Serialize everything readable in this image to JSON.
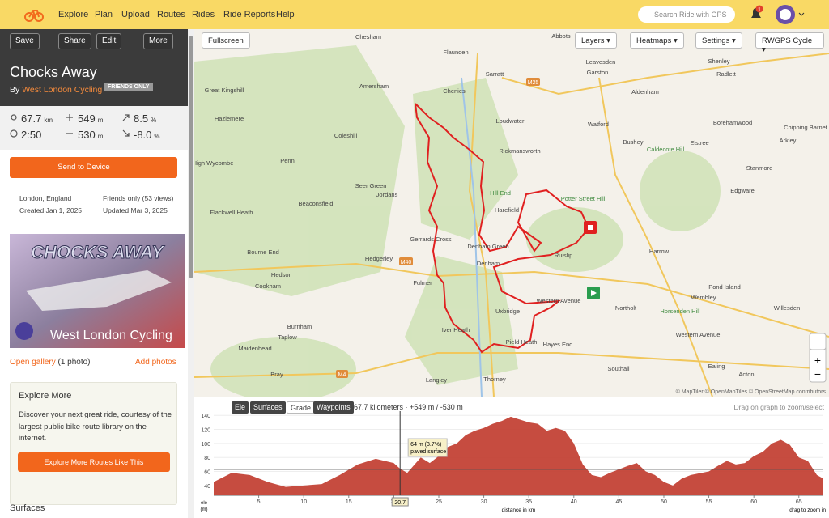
{
  "nav": {
    "items": [
      "Explore",
      "Plan",
      "Upload",
      "Routes",
      "Rides",
      "Ride Reports",
      "Help"
    ],
    "search": "Search Ride with GPS",
    "notifications": "1"
  },
  "toolbar": {
    "buttons": [
      "Save",
      "Share",
      "Edit",
      "More"
    ]
  },
  "ride": {
    "title": "Chocks Away",
    "by": "By",
    "club": "West London Cycling",
    "visibility": "FRIENDS ONLY"
  },
  "stats": [
    {
      "value": "67.7",
      "unit": "km"
    },
    {
      "value": "549",
      "unit": "m"
    },
    {
      "value": "8.5",
      "unit": "%"
    },
    {
      "value": "2:50"
    },
    {
      "value": "530",
      "unit": "m"
    },
    {
      "value": "-8.0",
      "unit": "%"
    }
  ],
  "send": "Send to Device",
  "meta": [
    "London, England",
    "Friends only (53 views)",
    "Created Jan 1, 2025",
    "Updated Mar 3, 2025"
  ],
  "photo": {
    "banner": "CHOCKS AWAY",
    "caption": "West London Cycling"
  },
  "gallery": {
    "link": "Open gallery",
    "count": "(1 photo)",
    "add": "Add photos"
  },
  "explore": {
    "title": "Explore More",
    "text": "Discover your next great ride, courtesy of the largest public bike route library on the internet.",
    "button": "Explore More Routes Like This"
  },
  "surfaces": "Surfaces",
  "map": {
    "controls": {
      "fullscreen": "Fullscreen",
      "layers": "Layers",
      "heatmaps": "Heatmaps",
      "settings": "Settings",
      "style": "RWGPS Cycle"
    },
    "labels": [
      "Chesham",
      "Flaunden",
      "Sarratt",
      "Abbots",
      "Leavesden",
      "Garston",
      "Shenley",
      "Amersham",
      "Chenies",
      "Great Kingshill",
      "Aldenham",
      "Radlett",
      "Hazlemere",
      "Loudwater",
      "Watford",
      "Borehamwood",
      "Chipping Barnet",
      "Coleshill",
      "Bushey",
      "Elstree",
      "Caldecote Hill",
      "Rickmansworth",
      "High Wycombe",
      "Penn",
      "Arkley",
      "Seer Green",
      "Jordans",
      "Hill End",
      "Potter Street Hill",
      "Stanmore",
      "Beaconsfield",
      "Edgware",
      "Flackwell Heath",
      "Harefield",
      "Gerrards Cross",
      "Denham Green",
      "Ruislip",
      "Harrow",
      "Bourne End",
      "Hedgerley",
      "Denham",
      "Cookham",
      "Hedsor",
      "Fulmer",
      "Western Avenue",
      "Northolt",
      "Pond Island",
      "Wembley",
      "Willesden",
      "Horsenden Hill",
      "Uxbridge",
      "Burnham",
      "Taplow",
      "Iver Heath",
      "Western Avenue",
      "Maidenhead",
      "Pield Heath",
      "Hayes End",
      "Bray",
      "Southall",
      "Ealing",
      "Acton",
      "Langley",
      "Thorney"
    ],
    "roads": [
      "M25",
      "M40",
      "M4"
    ],
    "attribution": "© MapTiler © OpenMapTiles © OpenStreetMap contributors"
  },
  "elevation": {
    "tabs": [
      "Ele",
      "Surfaces",
      "Grade",
      "Waypoints"
    ],
    "summary": "67.7 kilometers · +549 m / -530 m",
    "hint": "Drag on graph to zoom/select",
    "chart": {
      "type": "area",
      "color": "#c0392b",
      "ylabel": "ele",
      "yunit": "(m)",
      "xlabel": "distance in km",
      "zoom_hint": "drag to zoom in",
      "x": [
        0,
        2,
        4,
        6,
        8,
        10,
        12,
        14,
        16,
        18,
        20,
        20.7,
        21.5,
        23,
        24,
        25,
        26,
        27,
        28,
        29,
        30,
        31,
        32,
        33,
        34,
        35,
        36,
        37,
        38,
        39,
        40,
        41,
        42,
        43,
        44,
        46,
        47,
        48,
        49,
        50,
        51,
        52,
        53,
        55,
        56,
        57,
        58,
        59,
        60,
        61,
        62,
        63,
        64,
        65,
        66,
        67,
        67.7
      ],
      "values": [
        45,
        58,
        55,
        45,
        38,
        40,
        42,
        55,
        70,
        78,
        72,
        64,
        58,
        80,
        72,
        82,
        95,
        100,
        112,
        118,
        122,
        128,
        132,
        138,
        134,
        130,
        128,
        118,
        122,
        118,
        100,
        70,
        55,
        52,
        58,
        68,
        72,
        60,
        55,
        45,
        40,
        50,
        55,
        60,
        68,
        75,
        70,
        72,
        82,
        88,
        100,
        105,
        98,
        80,
        75,
        55,
        50
      ],
      "xlim": [
        0,
        67.7
      ],
      "ylim": [
        26,
        146
      ],
      "xticks": [
        5,
        10,
        15,
        20,
        25,
        30,
        35,
        40,
        45,
        50,
        55,
        60,
        65
      ],
      "yticks": [
        40,
        60,
        80,
        100,
        120,
        140
      ],
      "reference_line": 63,
      "cursor_x": 20.7,
      "tooltip": [
        "64 m (3.7%)",
        "paved surface"
      ]
    }
  }
}
